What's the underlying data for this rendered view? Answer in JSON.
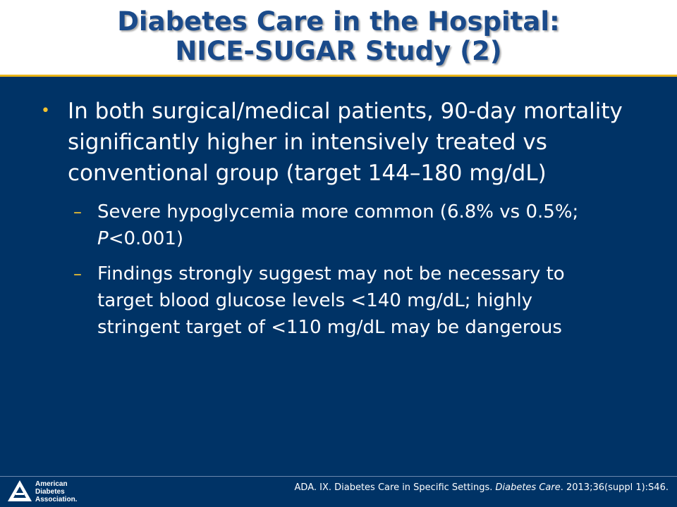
{
  "slide": {
    "title_line1": "Diabetes Care in the Hospital:",
    "title_line2": "NICE-SUGAR Study (2)"
  },
  "bullet": {
    "text": "In both surgical/medical patients, 90-day mortality significantly higher in intensively treated vs conventional group (target 144–180 mg/dL)"
  },
  "subbullets": {
    "hypoglycemia": {
      "part1": "Severe hypoglycemia more common (6.8% vs 0.5%; ",
      "p_symbol": "P",
      "part2": "<0.001)"
    },
    "findings": {
      "text": "Findings strongly suggest may not be necessary to target blood glucose levels <140 mg/dL; highly stringent target of <110 mg/dL may be dangerous"
    }
  },
  "logo": {
    "line1": "American",
    "line2": "Diabetes",
    "line3": "Association."
  },
  "citation": {
    "part1": "ADA. IX. Diabetes Care in Specific Settings. ",
    "journal": "Diabetes Care",
    "part2": ". 2013;36(suppl 1):S46."
  },
  "colors": {
    "background": "#003366",
    "title": "#1a4a8a",
    "accent": "#e8b418",
    "bullet_marker": "#f2c230"
  }
}
